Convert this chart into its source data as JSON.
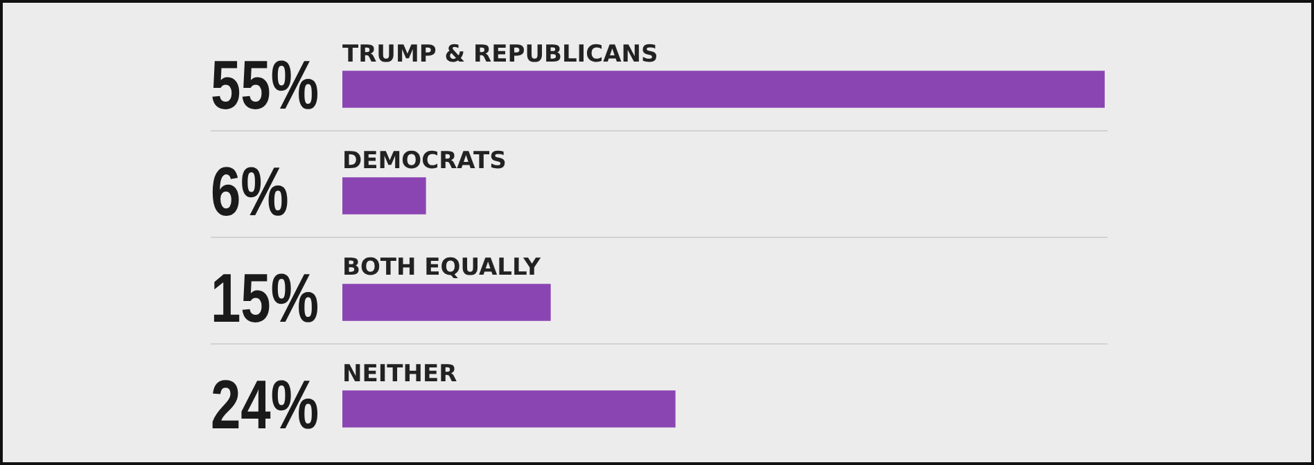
{
  "chart_data": {
    "type": "bar",
    "orientation": "horizontal",
    "categories": [
      "TRUMP & REPUBLICANS",
      "DEMOCRATS",
      "BOTH EQUALLY",
      "NEITHER"
    ],
    "values": [
      55,
      6,
      15,
      24
    ],
    "color": "#8b45b3",
    "value_labels": [
      "55%",
      "6%",
      "15%",
      "24%"
    ]
  }
}
